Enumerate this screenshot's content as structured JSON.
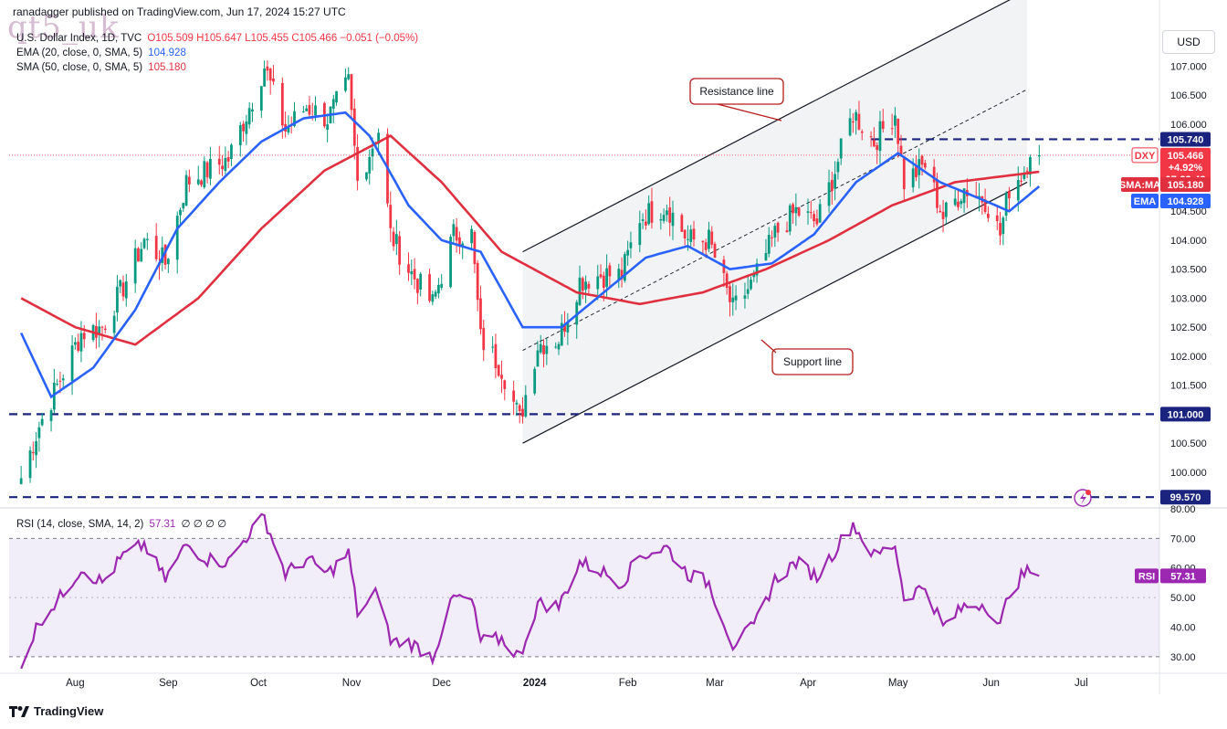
{
  "header": {
    "attribution": "ranadagger published on TradingView.com, Jun 17, 2024 15:27 UTC",
    "watermark": "qt5_uk"
  },
  "legend": {
    "symbol": "U.S. Dollar Index, 1D, TVC",
    "ohlc": "O105.509 H105.647 L105.455 C105.466 −0.051 (−0.05%)",
    "ema_label": "EMA (20, close, 0, SMA, 5)",
    "ema_value": "104.928",
    "sma_label": "SMA (50, close, 0, SMA, 5)",
    "sma_value": "105.180",
    "rsi_label": "RSI (14, close, SMA, 14, 2)",
    "rsi_value": "57.31",
    "rsi_extra": "∅ ∅ ∅ ∅"
  },
  "currency_button": "USD",
  "footer": {
    "brand": "TradingView"
  },
  "colors": {
    "up": "#089981",
    "down": "#f23645",
    "ema": "#2962ff",
    "sma": "#e03040",
    "rsi": "#9c27b0",
    "channel": "#131722",
    "level": "#1a237e",
    "annotation_border": "#b71c1c"
  },
  "chart_data": {
    "type": "candlestick",
    "title": "U.S. Dollar Index, 1D, TVC",
    "x_ticks": [
      "Aug",
      "Sep",
      "Oct",
      "Nov",
      "Dec",
      "2024",
      "Feb",
      "Mar",
      "Apr",
      "May",
      "Jun",
      "Jul"
    ],
    "y_ticks": [
      "100.000",
      "100.500",
      "101.000",
      "101.500",
      "102.000",
      "102.500",
      "103.000",
      "103.500",
      "104.000",
      "104.500",
      "105.000",
      "105.500",
      "106.000",
      "106.500",
      "107.000"
    ],
    "ylim": [
      99.4,
      107.7
    ],
    "price_tags": [
      {
        "label": "105.740",
        "value": 105.74,
        "kind": "level"
      },
      {
        "label": "DXY",
        "value": 105.466,
        "kind": "symbol"
      },
      {
        "label": "105.466",
        "value": 105.466,
        "kind": "last"
      },
      {
        "label": "+4.92%",
        "value": 105.466,
        "kind": "change"
      },
      {
        "label": "07:32:43",
        "value": 105.466,
        "kind": "countdown"
      },
      {
        "label": "SMA:MA",
        "value": 105.18,
        "kind": "sma-name"
      },
      {
        "label": "105.180",
        "value": 105.18,
        "kind": "sma"
      },
      {
        "label": "EMA",
        "value": 104.928,
        "kind": "ema-name"
      },
      {
        "label": "104.928",
        "value": 104.928,
        "kind": "ema"
      },
      {
        "label": "101.000",
        "value": 101.0,
        "kind": "level"
      },
      {
        "label": "99.570",
        "value": 99.57,
        "kind": "level"
      }
    ],
    "horizontal_levels": [
      105.74,
      101.0,
      99.57
    ],
    "annotations": [
      {
        "text": "Resistance line"
      },
      {
        "text": "Support line"
      }
    ],
    "channel": {
      "upper": [
        {
          "x": "2023-12-28",
          "y": 103.8
        },
        {
          "x": "2024-06-13",
          "y": 108.3
        }
      ],
      "lower": [
        {
          "x": "2023-12-28",
          "y": 100.5
        },
        {
          "x": "2024-06-13",
          "y": 105.0
        }
      ],
      "mid": [
        {
          "x": "2023-12-28",
          "y": 102.1
        },
        {
          "x": "2024-06-13",
          "y": 106.6
        }
      ]
    },
    "close_anchors": [
      {
        "x": "2023-07-14",
        "y": 99.9
      },
      {
        "x": "2023-07-20",
        "y": 100.8
      },
      {
        "x": "2023-07-27",
        "y": 101.6
      },
      {
        "x": "2023-08-03",
        "y": 102.4
      },
      {
        "x": "2023-08-10",
        "y": 102.5
      },
      {
        "x": "2023-08-17",
        "y": 103.2
      },
      {
        "x": "2023-08-24",
        "y": 104.0
      },
      {
        "x": "2023-08-31",
        "y": 103.6
      },
      {
        "x": "2023-09-07",
        "y": 105.0
      },
      {
        "x": "2023-09-14",
        "y": 105.2
      },
      {
        "x": "2023-09-21",
        "y": 105.4
      },
      {
        "x": "2023-09-28",
        "y": 106.3
      },
      {
        "x": "2023-10-03",
        "y": 107.0
      },
      {
        "x": "2023-10-10",
        "y": 105.9
      },
      {
        "x": "2023-10-17",
        "y": 106.3
      },
      {
        "x": "2023-10-24",
        "y": 106.1
      },
      {
        "x": "2023-10-31",
        "y": 106.7
      },
      {
        "x": "2023-11-03",
        "y": 105.0
      },
      {
        "x": "2023-11-10",
        "y": 105.9
      },
      {
        "x": "2023-11-14",
        "y": 104.1
      },
      {
        "x": "2023-11-20",
        "y": 103.5
      },
      {
        "x": "2023-11-28",
        "y": 102.9
      },
      {
        "x": "2023-12-05",
        "y": 104.1
      },
      {
        "x": "2023-12-11",
        "y": 104.1
      },
      {
        "x": "2023-12-14",
        "y": 102.3
      },
      {
        "x": "2023-12-21",
        "y": 101.8
      },
      {
        "x": "2023-12-27",
        "y": 100.9
      },
      {
        "x": "2024-01-02",
        "y": 102.2
      },
      {
        "x": "2024-01-09",
        "y": 102.3
      },
      {
        "x": "2024-01-16",
        "y": 103.3
      },
      {
        "x": "2024-01-23",
        "y": 103.4
      },
      {
        "x": "2024-01-30",
        "y": 103.4
      },
      {
        "x": "2024-02-05",
        "y": 104.4
      },
      {
        "x": "2024-02-14",
        "y": 104.6
      },
      {
        "x": "2024-02-21",
        "y": 104.0
      },
      {
        "x": "2024-02-28",
        "y": 104.0
      },
      {
        "x": "2024-03-07",
        "y": 102.8
      },
      {
        "x": "2024-03-14",
        "y": 103.3
      },
      {
        "x": "2024-03-21",
        "y": 104.1
      },
      {
        "x": "2024-03-28",
        "y": 104.5
      },
      {
        "x": "2024-04-04",
        "y": 104.3
      },
      {
        "x": "2024-04-10",
        "y": 105.2
      },
      {
        "x": "2024-04-16",
        "y": 106.2
      },
      {
        "x": "2024-04-23",
        "y": 105.7
      },
      {
        "x": "2024-04-30",
        "y": 106.2
      },
      {
        "x": "2024-05-03",
        "y": 105.0
      },
      {
        "x": "2024-05-10",
        "y": 105.3
      },
      {
        "x": "2024-05-16",
        "y": 104.4
      },
      {
        "x": "2024-05-23",
        "y": 104.9
      },
      {
        "x": "2024-05-30",
        "y": 104.7
      },
      {
        "x": "2024-06-04",
        "y": 104.1
      },
      {
        "x": "2024-06-07",
        "y": 104.9
      },
      {
        "x": "2024-06-12",
        "y": 105.2
      },
      {
        "x": "2024-06-14",
        "y": 105.6
      },
      {
        "x": "2024-06-17",
        "y": 105.466
      }
    ],
    "ema20_anchors": [
      {
        "x": "2023-07-14",
        "y": 102.4
      },
      {
        "x": "2023-07-24",
        "y": 101.3
      },
      {
        "x": "2023-08-07",
        "y": 101.8
      },
      {
        "x": "2023-08-21",
        "y": 102.8
      },
      {
        "x": "2023-09-04",
        "y": 104.2
      },
      {
        "x": "2023-09-18",
        "y": 105.0
      },
      {
        "x": "2023-10-02",
        "y": 105.7
      },
      {
        "x": "2023-10-16",
        "y": 106.1
      },
      {
        "x": "2023-10-30",
        "y": 106.2
      },
      {
        "x": "2023-11-07",
        "y": 105.8
      },
      {
        "x": "2023-11-20",
        "y": 104.6
      },
      {
        "x": "2023-12-01",
        "y": 104.0
      },
      {
        "x": "2023-12-14",
        "y": 103.8
      },
      {
        "x": "2023-12-28",
        "y": 102.5
      },
      {
        "x": "2024-01-10",
        "y": 102.5
      },
      {
        "x": "2024-01-24",
        "y": 103.1
      },
      {
        "x": "2024-02-07",
        "y": 103.7
      },
      {
        "x": "2024-02-21",
        "y": 103.9
      },
      {
        "x": "2024-03-06",
        "y": 103.5
      },
      {
        "x": "2024-03-20",
        "y": 103.6
      },
      {
        "x": "2024-04-03",
        "y": 104.1
      },
      {
        "x": "2024-04-17",
        "y": 105.0
      },
      {
        "x": "2024-05-01",
        "y": 105.5
      },
      {
        "x": "2024-05-15",
        "y": 105.0
      },
      {
        "x": "2024-05-29",
        "y": 104.7
      },
      {
        "x": "2024-06-07",
        "y": 104.5
      },
      {
        "x": "2024-06-17",
        "y": 104.928
      }
    ],
    "sma50_anchors": [
      {
        "x": "2023-07-14",
        "y": 103.0
      },
      {
        "x": "2023-08-01",
        "y": 102.5
      },
      {
        "x": "2023-08-21",
        "y": 102.2
      },
      {
        "x": "2023-09-11",
        "y": 103.0
      },
      {
        "x": "2023-10-02",
        "y": 104.2
      },
      {
        "x": "2023-10-23",
        "y": 105.2
      },
      {
        "x": "2023-11-14",
        "y": 105.8
      },
      {
        "x": "2023-12-01",
        "y": 105.0
      },
      {
        "x": "2023-12-21",
        "y": 103.8
      },
      {
        "x": "2024-01-15",
        "y": 103.1
      },
      {
        "x": "2024-02-05",
        "y": 102.9
      },
      {
        "x": "2024-02-26",
        "y": 103.1
      },
      {
        "x": "2024-03-18",
        "y": 103.5
      },
      {
        "x": "2024-04-08",
        "y": 104.0
      },
      {
        "x": "2024-04-29",
        "y": 104.6
      },
      {
        "x": "2024-05-20",
        "y": 105.0
      },
      {
        "x": "2024-06-17",
        "y": 105.18
      }
    ],
    "rsi": {
      "ylim": [
        25,
        80
      ],
      "y_ticks": [
        "30.00",
        "40.00",
        "50.00",
        "60.00",
        "70.00",
        "80.00"
      ],
      "band": [
        30,
        70
      ],
      "last": 57.31,
      "anchors": [
        {
          "x": "2023-07-14",
          "y": 27
        },
        {
          "x": "2023-07-20",
          "y": 42
        },
        {
          "x": "2023-07-27",
          "y": 50
        },
        {
          "x": "2023-08-03",
          "y": 60
        },
        {
          "x": "2023-08-10",
          "y": 55
        },
        {
          "x": "2023-08-17",
          "y": 64
        },
        {
          "x": "2023-08-24",
          "y": 68
        },
        {
          "x": "2023-08-31",
          "y": 56
        },
        {
          "x": "2023-09-07",
          "y": 68
        },
        {
          "x": "2023-09-14",
          "y": 63
        },
        {
          "x": "2023-09-21",
          "y": 62
        },
        {
          "x": "2023-09-28",
          "y": 72
        },
        {
          "x": "2023-10-03",
          "y": 77
        },
        {
          "x": "2023-10-10",
          "y": 58
        },
        {
          "x": "2023-10-17",
          "y": 63
        },
        {
          "x": "2023-10-24",
          "y": 58
        },
        {
          "x": "2023-10-31",
          "y": 65
        },
        {
          "x": "2023-11-03",
          "y": 45
        },
        {
          "x": "2023-11-10",
          "y": 52
        },
        {
          "x": "2023-11-14",
          "y": 35
        },
        {
          "x": "2023-11-20",
          "y": 35
        },
        {
          "x": "2023-11-28",
          "y": 30
        },
        {
          "x": "2023-12-05",
          "y": 50
        },
        {
          "x": "2023-12-11",
          "y": 49
        },
        {
          "x": "2023-12-14",
          "y": 35
        },
        {
          "x": "2023-12-21",
          "y": 36
        },
        {
          "x": "2023-12-27",
          "y": 30
        },
        {
          "x": "2024-01-02",
          "y": 48
        },
        {
          "x": "2024-01-09",
          "y": 47
        },
        {
          "x": "2024-01-16",
          "y": 62
        },
        {
          "x": "2024-01-23",
          "y": 59
        },
        {
          "x": "2024-01-30",
          "y": 55
        },
        {
          "x": "2024-02-05",
          "y": 64
        },
        {
          "x": "2024-02-14",
          "y": 67
        },
        {
          "x": "2024-02-21",
          "y": 58
        },
        {
          "x": "2024-02-28",
          "y": 55
        },
        {
          "x": "2024-03-07",
          "y": 34
        },
        {
          "x": "2024-03-14",
          "y": 40
        },
        {
          "x": "2024-03-21",
          "y": 56
        },
        {
          "x": "2024-03-28",
          "y": 62
        },
        {
          "x": "2024-04-04",
          "y": 57
        },
        {
          "x": "2024-04-10",
          "y": 66
        },
        {
          "x": "2024-04-16",
          "y": 75
        },
        {
          "x": "2024-04-23",
          "y": 64
        },
        {
          "x": "2024-04-30",
          "y": 68
        },
        {
          "x": "2024-05-03",
          "y": 50
        },
        {
          "x": "2024-05-10",
          "y": 54
        },
        {
          "x": "2024-05-16",
          "y": 40
        },
        {
          "x": "2024-05-23",
          "y": 47
        },
        {
          "x": "2024-05-30",
          "y": 48
        },
        {
          "x": "2024-06-04",
          "y": 40
        },
        {
          "x": "2024-06-07",
          "y": 52
        },
        {
          "x": "2024-06-12",
          "y": 58
        },
        {
          "x": "2024-06-14",
          "y": 59
        },
        {
          "x": "2024-06-17",
          "y": 57.31
        }
      ]
    }
  }
}
